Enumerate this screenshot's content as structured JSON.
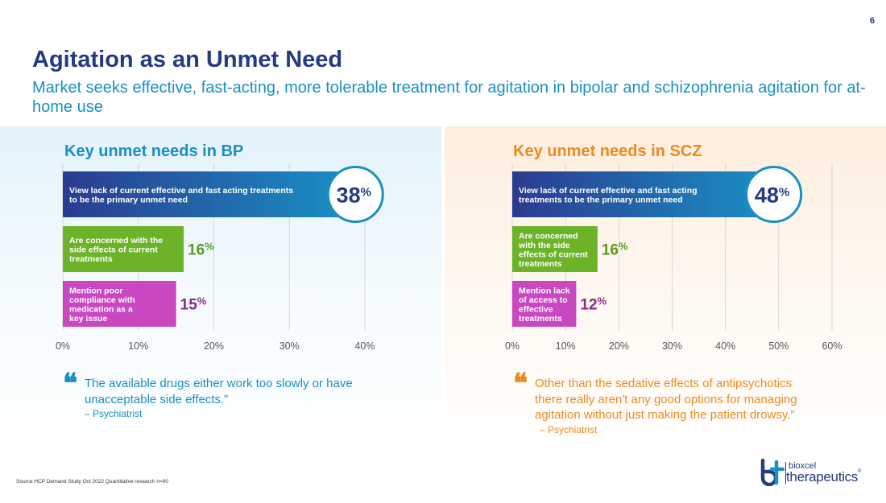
{
  "page_number": "6",
  "title": "Agitation as an Unmet Need",
  "subtitle": "Market seeks effective, fast-acting, more tolerable treatment for agitation in bipolar and schizophrenia agitation for at-home use",
  "source": "Source HCP Demand Study Oct 2022 Quantitative research n=90",
  "logo": {
    "small": "bioxcel",
    "big": "therapeutics",
    "reg": "®"
  },
  "colors": {
    "bp_accent": "#1a8fc4",
    "scz_accent": "#ee8a1f",
    "navy": "#243a82",
    "green": "#6db32a",
    "green_text": "#5a9a1f",
    "purple": "#c948c2",
    "purple_text": "#8b2a8a"
  },
  "panels": {
    "bp": {
      "title": "Key unmet needs in BP",
      "quote_mark": "❝",
      "quote": "The available drugs either work too slowly or have unacceptable side effects.”",
      "attribution": "– Psychiatrist"
    },
    "scz": {
      "title": "Key unmet needs in SCZ",
      "quote_mark": "❝",
      "quote": "Other than the sedative effects of antipsychotics there really aren't any good options for managing agitation without just making the patient drowsy.”",
      "attribution": "– Psychiatrist"
    }
  },
  "chart_data": [
    {
      "type": "bar",
      "orientation": "horizontal",
      "title": "Key unmet needs in BP",
      "categories": [
        "View lack of current effective and fast acting treatments to be the primary unmet need",
        "Are concerned with the side effects of current treatments",
        "Mention poor compliance with medication as a key issue"
      ],
      "bar_label_lines": [
        [
          "View lack of current effective and fast acting treatments",
          "to be the primary unmet need"
        ],
        [
          "Are concerned with the",
          "side effects of current",
          "treatments"
        ],
        [
          "Mention poor",
          "compliance with",
          "medication as a",
          "key issue"
        ]
      ],
      "values": [
        38,
        16,
        15
      ],
      "value_labels": [
        "38",
        "16",
        "15"
      ],
      "value_suffix": "%",
      "bar_colors": [
        "navy",
        "green",
        "purple"
      ],
      "xlim": [
        0,
        40
      ],
      "xticks": [
        0,
        10,
        20,
        30,
        40
      ],
      "xtick_labels": [
        "0%",
        "10%",
        "20%",
        "30%",
        "40%"
      ],
      "grid": true
    },
    {
      "type": "bar",
      "orientation": "horizontal",
      "title": "Key unmet needs in SCZ",
      "categories": [
        "View lack of current effective and fast acting treatments to be the primary unmet need",
        "Are concerned with the side effects of current treatments",
        "Mention lack of access to effective treatments"
      ],
      "bar_label_lines": [
        [
          "View lack of current effective and fast acting",
          "treatments to be the primary unmet need"
        ],
        [
          "Are concerned",
          "with the side",
          "effects of current",
          "treatments"
        ],
        [
          "Mention lack",
          "of access to",
          "effective",
          "treatments"
        ]
      ],
      "values": [
        48,
        16,
        12
      ],
      "value_labels": [
        "48",
        "16",
        "12"
      ],
      "value_suffix": "%",
      "bar_colors": [
        "navy",
        "green",
        "purple"
      ],
      "xlim": [
        0,
        60
      ],
      "xticks": [
        0,
        10,
        20,
        30,
        40,
        50,
        60
      ],
      "xtick_labels": [
        "0%",
        "10%",
        "20%",
        "30%",
        "40%",
        "50%",
        "60%"
      ],
      "grid": true
    }
  ]
}
